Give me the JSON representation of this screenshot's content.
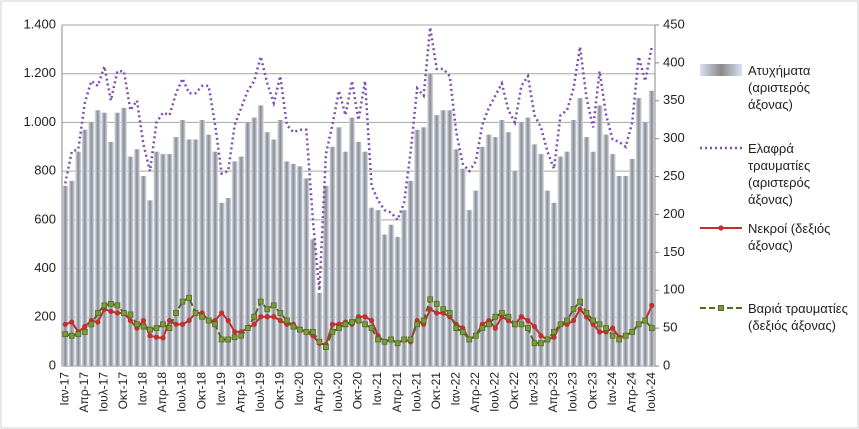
{
  "chart_data": {
    "type": "combo",
    "categories": [
      "Ιαν-17",
      null,
      null,
      "Απρ-17",
      null,
      null,
      "Ιουλ-17",
      null,
      null,
      "Οκτ-17",
      null,
      null,
      "Ιαν-18",
      null,
      null,
      "Απρ-18",
      null,
      null,
      "Ιουλ-18",
      null,
      null,
      "Οκτ-18",
      null,
      null,
      "Ιαν-19",
      null,
      null,
      "Απρ-19",
      null,
      null,
      "Ιουλ-19",
      null,
      null,
      "Οκτ-19",
      null,
      null,
      "Ιαν-20",
      null,
      null,
      "Απρ-20",
      null,
      null,
      "Ιουλ-20",
      null,
      null,
      "Οκτ-20",
      null,
      null,
      "Ιαν-21",
      null,
      null,
      "Απρ-21",
      null,
      null,
      "Ιουλ-21",
      null,
      null,
      "Οκτ-21",
      null,
      null,
      "Ιαν-22",
      null,
      null,
      "Απρ-22",
      null,
      null,
      "Ιουλ-22",
      null,
      null,
      "Οκτ-22",
      null,
      null,
      "Ιαν-23",
      null,
      null,
      "Απρ-23",
      null,
      null,
      "Ιουλ-23",
      null,
      null,
      "Οκτ-23",
      null,
      null,
      "Ιαν-24",
      null,
      null,
      "Απρ-24",
      null,
      null,
      "Ιουλ-24"
    ],
    "series": [
      {
        "name": "Ατυχήματα (αριστερός άξονας)",
        "type": "bar",
        "color": "#8c8c8c",
        "values": [
          740,
          760,
          880,
          970,
          1000,
          1050,
          1040,
          920,
          1040,
          1060,
          860,
          890,
          780,
          680,
          880,
          870,
          870,
          940,
          1010,
          930,
          930,
          1010,
          950,
          880,
          670,
          690,
          840,
          860,
          1000,
          1020,
          1070,
          960,
          930,
          1010,
          840,
          830,
          820,
          770,
          520,
          300,
          740,
          900,
          980,
          880,
          1020,
          920,
          880,
          650,
          640,
          540,
          580,
          530,
          640,
          760,
          970,
          980,
          1200,
          1030,
          1050,
          1050,
          890,
          810,
          640,
          720,
          900,
          950,
          940,
          1010,
          960,
          800,
          1000,
          1020,
          910,
          870,
          720,
          670,
          860,
          880,
          1010,
          1100,
          940,
          880,
          1070,
          950,
          870,
          780,
          780,
          850,
          1100,
          1000,
          1130
        ]
      },
      {
        "name": "Ελαφρά τραυματίες (αριστερός άξονας)",
        "type": "dotted",
        "color": "#7f4fb0",
        "values": [
          750,
          880,
          890,
          1080,
          1170,
          1150,
          1230,
          1090,
          1210,
          1210,
          1050,
          1090,
          910,
          800,
          1000,
          1040,
          1030,
          1120,
          1180,
          1120,
          1120,
          1150,
          1150,
          990,
          790,
          800,
          990,
          1060,
          1130,
          1170,
          1270,
          1160,
          1080,
          1190,
          990,
          960,
          970,
          970,
          600,
          310,
          870,
          990,
          1130,
          1030,
          1170,
          1010,
          1170,
          740,
          680,
          640,
          630,
          600,
          670,
          880,
          1140,
          1110,
          1390,
          1220,
          1220,
          1190,
          960,
          830,
          800,
          840,
          990,
          1060,
          1110,
          1160,
          1050,
          1000,
          1150,
          1190,
          1030,
          980,
          880,
          810,
          1030,
          1050,
          1140,
          1310,
          1100,
          980,
          1210,
          1030,
          930,
          920,
          900,
          1000,
          1270,
          1170,
          1310
        ]
      },
      {
        "name": "Νεκροί (δεξιός άξονας)",
        "type": "line",
        "axis": "y2",
        "color": "#c0302c",
        "values": [
          55,
          58,
          45,
          52,
          60,
          58,
          75,
          72,
          70,
          70,
          60,
          50,
          60,
          40,
          38,
          37,
          60,
          55,
          55,
          60,
          70,
          70,
          60,
          60,
          70,
          60,
          45,
          45,
          50,
          55,
          65,
          65,
          65,
          60,
          55,
          55,
          48,
          45,
          40,
          30,
          28,
          55,
          55,
          58,
          55,
          65,
          65,
          60,
          40,
          32,
          35,
          30,
          35,
          32,
          60,
          55,
          75,
          70,
          70,
          65,
          55,
          50,
          35,
          40,
          55,
          60,
          50,
          65,
          60,
          55,
          65,
          60,
          52,
          40,
          35,
          38,
          55,
          55,
          60,
          75,
          65,
          55,
          45,
          45,
          50,
          38,
          40,
          45,
          55,
          60,
          80
        ]
      },
      {
        "name": "Βαριά τραυματίες (δεξιός άξονας)",
        "type": "dashed",
        "axis": "y2",
        "color": "#4f6b22",
        "values": [
          42,
          40,
          42,
          45,
          55,
          70,
          80,
          82,
          80,
          70,
          68,
          55,
          52,
          48,
          50,
          55,
          50,
          70,
          85,
          90,
          70,
          65,
          60,
          55,
          35,
          35,
          38,
          40,
          50,
          65,
          85,
          75,
          80,
          70,
          60,
          52,
          48,
          45,
          45,
          32,
          25,
          45,
          50,
          55,
          58,
          60,
          55,
          50,
          35,
          32,
          35,
          30,
          35,
          35,
          55,
          60,
          88,
          82,
          75,
          70,
          50,
          45,
          35,
          40,
          50,
          55,
          65,
          70,
          65,
          55,
          55,
          50,
          30,
          30,
          35,
          45,
          55,
          60,
          75,
          85,
          70,
          60,
          55,
          50,
          40,
          35,
          40,
          45,
          55,
          60,
          50
        ]
      }
    ],
    "ylim": [
      0,
      1400
    ],
    "yticks": [
      0,
      200,
      400,
      600,
      800,
      {
        "value": 1000,
        "label": "1.000"
      },
      {
        "value": 1200,
        "label": "1.200"
      },
      {
        "value": 1400,
        "label": "1.400"
      }
    ],
    "y2lim": [
      0,
      450
    ],
    "y2ticks": [
      0,
      50,
      100,
      150,
      200,
      250,
      300,
      350,
      400,
      450
    ],
    "grid": true,
    "legend": "right"
  }
}
